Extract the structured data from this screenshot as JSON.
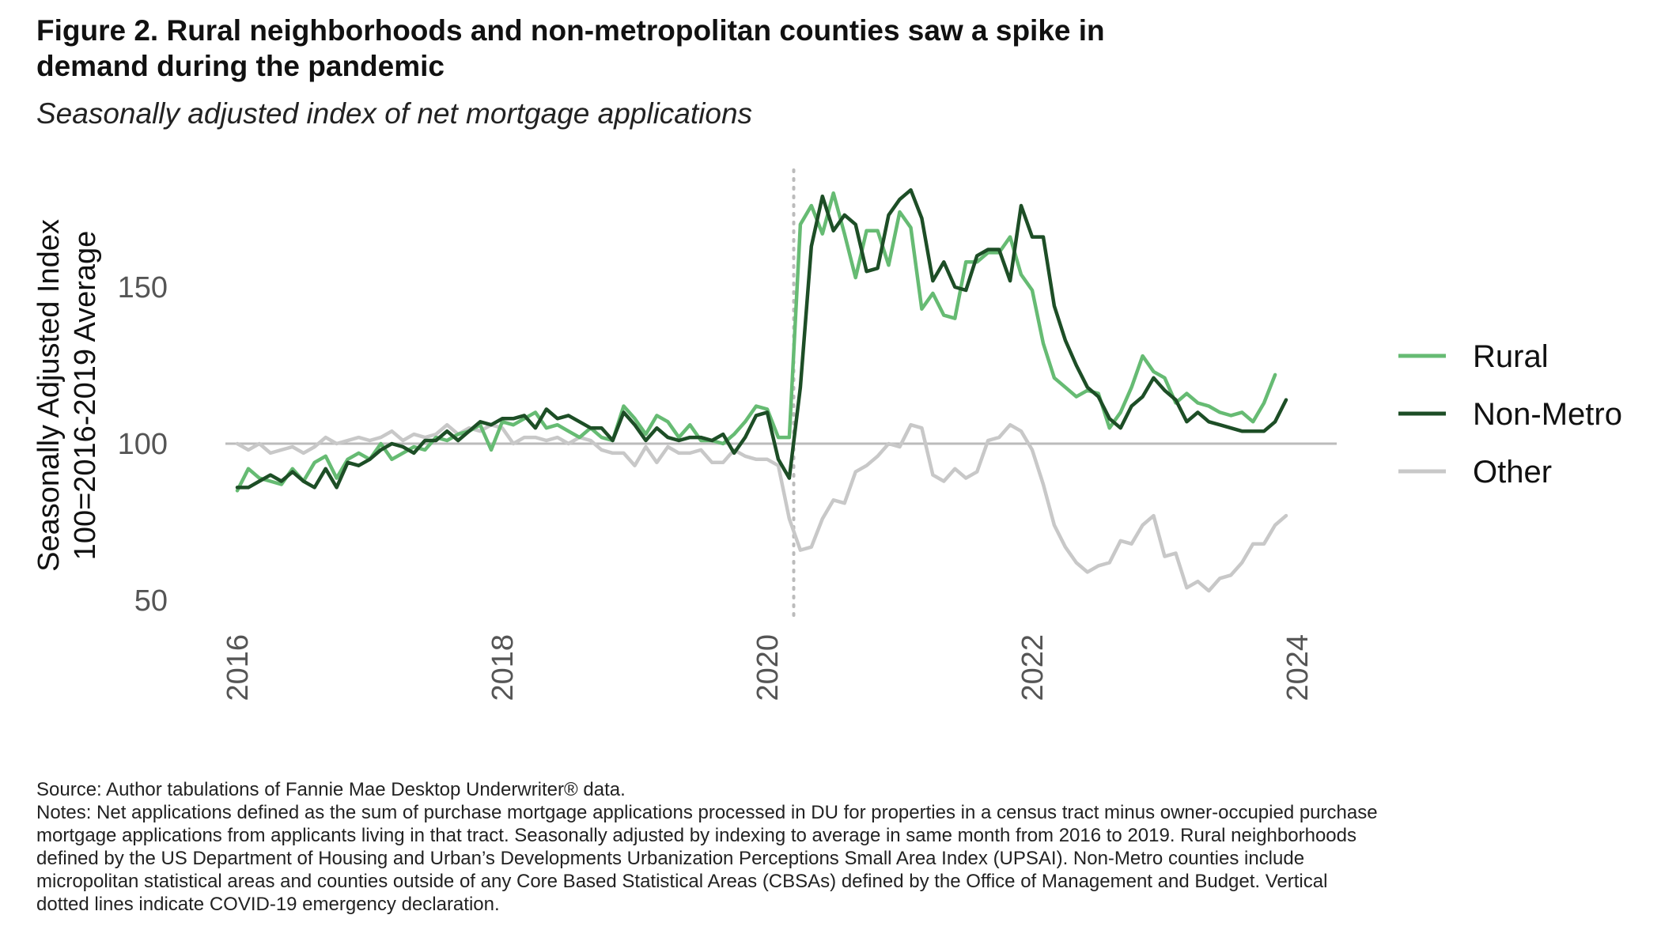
{
  "title": "Figure 2. Rural neighborhoods and non-metropolitan counties saw a spike in demand during the pandemic",
  "subtitle": "Seasonally adjusted index of net mortgage applications",
  "source": "Source: Author tabulations of Fannie Mae Desktop Underwriter® data.",
  "notes": "Notes: Net applications defined as the sum of purchase mortgage applications processed in DU for properties in a census tract minus owner-occupied purchase mortgage applications from applicants living in that tract. Seasonally adjusted by indexing to average in same month from 2016 to 2019. Rural neighborhoods defined by the US Department of Housing and Urban’s Developments Urbanization Perceptions Small Area Index (UPSAI). Non-Metro counties include micropolitan statistical areas and counties outside of any Core Based Statistical Areas (CBSAs) defined by the Office of Management and Budget. Vertical dotted lines indicate COVID-19 emergency declaration.",
  "chart_data": {
    "type": "line",
    "ylabel": "Seasonally Adjusted Index\n100=2016-2019 Average",
    "xlabel": "",
    "xlim": [
      2016,
      2024
    ],
    "ylim": [
      45,
      185
    ],
    "x_ticks": [
      2016,
      2018,
      2020,
      2022,
      2024
    ],
    "y_ticks": [
      50,
      100,
      150
    ],
    "reference_line": {
      "y": 100,
      "color": "#bbbbbb"
    },
    "vertical_line": {
      "x": 2020.2,
      "style": "dotted",
      "color": "#bbbbbb"
    },
    "legend_position": "right",
    "grid": false,
    "x_start": 2016.0,
    "x_step": 0.0833333,
    "series": [
      {
        "name": "Rural",
        "color": "#66bb73",
        "values": [
          85,
          92,
          89,
          88,
          87,
          92,
          88,
          94,
          96,
          89,
          95,
          97,
          95,
          100,
          95,
          97,
          99,
          98,
          102,
          101,
          103,
          104,
          106,
          98,
          107,
          106,
          108,
          110,
          105,
          106,
          104,
          102,
          105,
          102,
          101,
          112,
          108,
          103,
          109,
          107,
          102,
          106,
          101,
          101,
          100,
          103,
          107,
          112,
          111,
          102,
          102,
          170,
          176,
          167,
          180,
          167,
          153,
          168,
          168,
          157,
          174,
          169,
          143,
          148,
          141,
          140,
          158,
          158,
          161,
          161,
          166,
          154,
          149,
          132,
          121,
          118,
          115,
          117,
          116,
          105,
          110,
          118,
          128,
          123,
          121,
          113,
          116,
          113,
          112,
          110,
          109,
          110,
          107,
          113,
          122
        ]
      },
      {
        "name": "Non-Metro",
        "color": "#1d4e26",
        "values": [
          86,
          86,
          88,
          90,
          88,
          91,
          88,
          86,
          92,
          86,
          94,
          93,
          95,
          98,
          100,
          99,
          97,
          101,
          101,
          104,
          101,
          104,
          107,
          106,
          108,
          108,
          109,
          105,
          111,
          108,
          109,
          107,
          105,
          105,
          101,
          110,
          106,
          101,
          105,
          102,
          101,
          102,
          102,
          101,
          103,
          97,
          102,
          109,
          110,
          95,
          89,
          118,
          163,
          179,
          168,
          173,
          170,
          155,
          156,
          173,
          178,
          181,
          172,
          152,
          158,
          150,
          149,
          160,
          162,
          162,
          152,
          176,
          166,
          166,
          144,
          133,
          125,
          118,
          115,
          108,
          105,
          112,
          115,
          121,
          117,
          114,
          107,
          110,
          107,
          106,
          105,
          104,
          104,
          104,
          107,
          114
        ]
      },
      {
        "name": "Other",
        "color": "#c8c8c8",
        "values": [
          100,
          98,
          100,
          97,
          98,
          99,
          97,
          99,
          102,
          100,
          101,
          102,
          101,
          102,
          104,
          101,
          103,
          102,
          103,
          106,
          103,
          105,
          104,
          106,
          105,
          100,
          102,
          102,
          101,
          102,
          100,
          102,
          101,
          98,
          97,
          97,
          93,
          99,
          94,
          99,
          97,
          97,
          98,
          94,
          94,
          98,
          96,
          95,
          95,
          93,
          76,
          66,
          67,
          76,
          82,
          81,
          91,
          93,
          96,
          100,
          99,
          106,
          105,
          90,
          88,
          92,
          89,
          91,
          101,
          102,
          106,
          104,
          98,
          87,
          74,
          67,
          62,
          59,
          61,
          62,
          69,
          68,
          74,
          77,
          64,
          65,
          54,
          56,
          53,
          57,
          58,
          62,
          68,
          68,
          74,
          77
        ]
      }
    ]
  }
}
